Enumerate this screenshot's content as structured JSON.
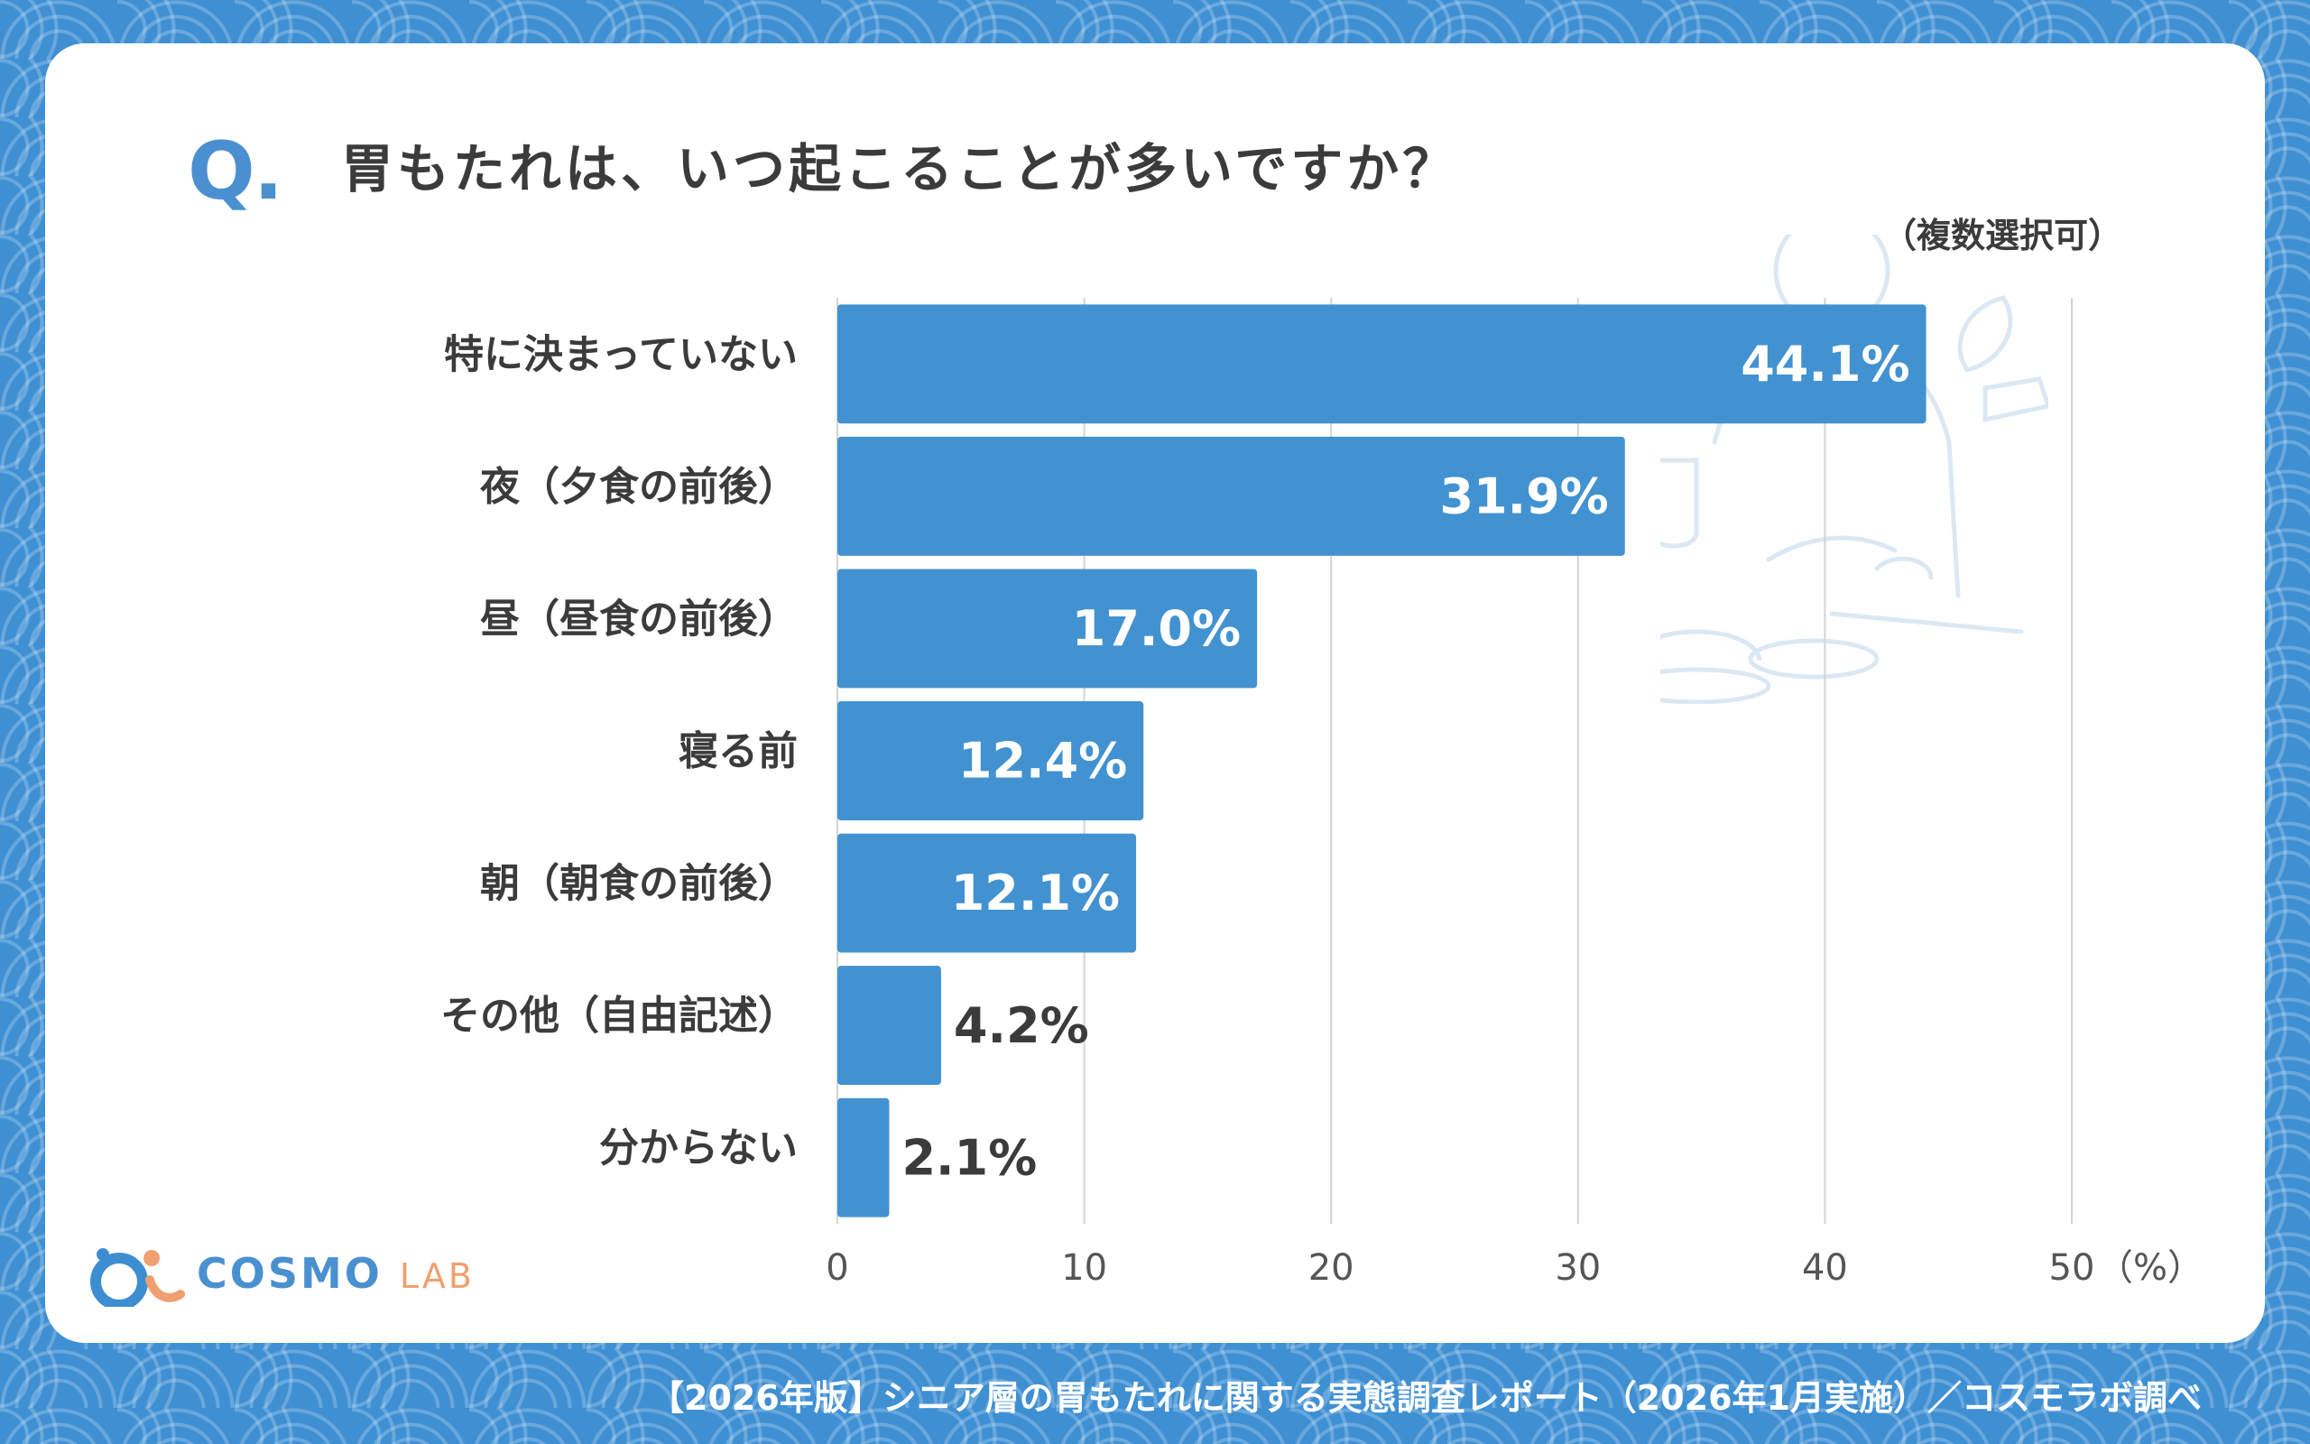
{
  "question": {
    "mark": "Q.",
    "title": "胃もたれは、いつ起こることが多いですか？",
    "note": "（複数選択可）"
  },
  "chart_data": {
    "type": "bar",
    "orientation": "horizontal",
    "categories": [
      "特に決まっていない",
      "夜（夕食の前後）",
      "昼（昼食の前後）",
      "寝る前",
      "朝（朝食の前後）",
      "その他（自由記述）",
      "分からない"
    ],
    "values": [
      44.1,
      31.9,
      17.0,
      12.4,
      12.1,
      4.2,
      2.1
    ],
    "value_labels": [
      "44.1%",
      "31.9%",
      "17.0%",
      "12.4%",
      "12.1%",
      "4.2%",
      "2.1%"
    ],
    "xlim": [
      0,
      50
    ],
    "ticks": [
      0,
      10,
      20,
      30,
      40,
      50
    ],
    "tick_labels": [
      "0",
      "10",
      "20",
      "30",
      "40",
      "50"
    ],
    "unit_label": "（%）",
    "grid": true,
    "bar_color": "#4292d1"
  },
  "logo": {
    "main": "COSMO",
    "sub": "LAB"
  },
  "footer": "【2026年版】シニア層の胃もたれに関する実態調査レポート（2026年1月実施）／コスモラボ調べ",
  "colors": {
    "background": "#3f8fd3",
    "accent": "#4a90d0",
    "text": "#3b3b3b"
  }
}
